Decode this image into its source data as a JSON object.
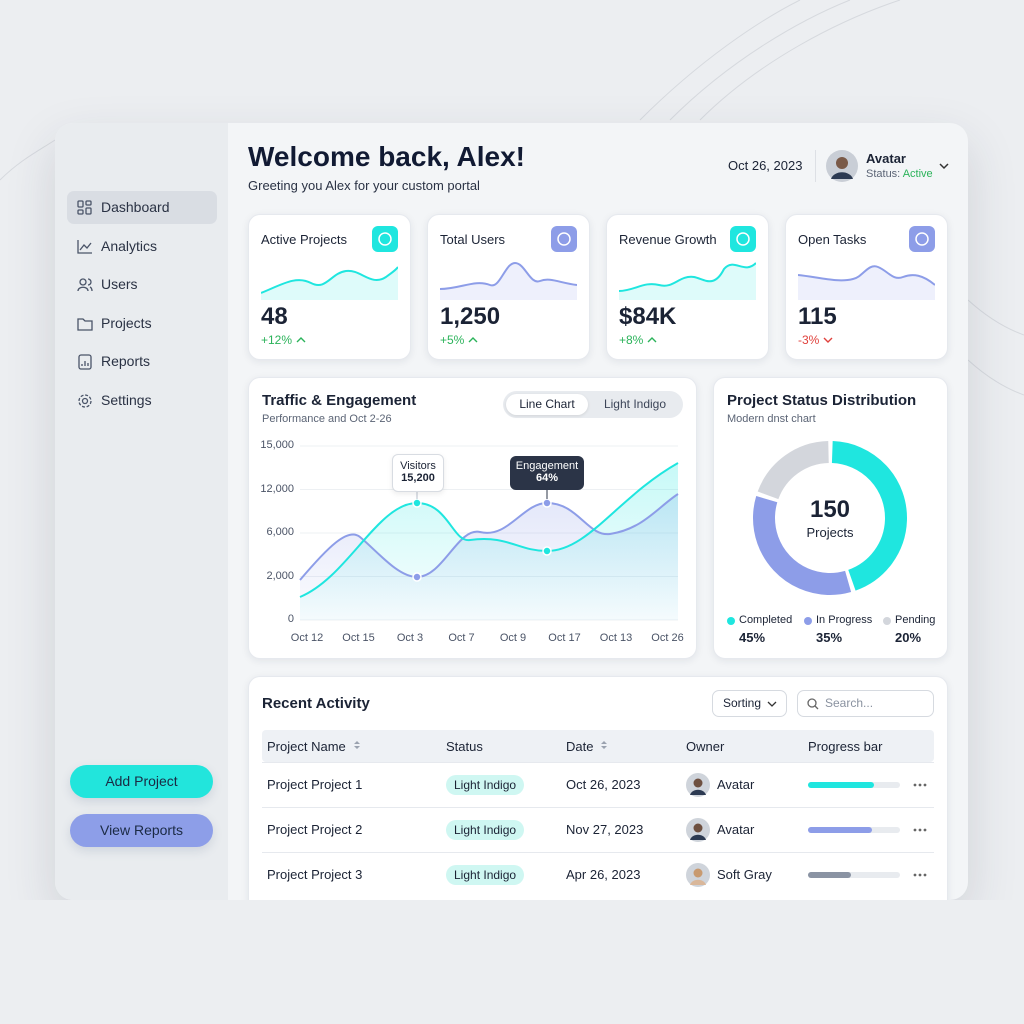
{
  "sidebar": {
    "nav": [
      "Dashboard",
      "Analytics",
      "Users",
      "Projects",
      "Reports",
      "Settings"
    ],
    "buttons": [
      "Add Project",
      "View Reports"
    ]
  },
  "header": {
    "title": "Welcome back, Alex!",
    "subtitle": "Greeting you Alex for your custom portal",
    "date": "Oct 26, 2023",
    "user": {
      "name": "Avatar",
      "status_label": "Status:",
      "status": "Active"
    }
  },
  "stats": [
    {
      "label": "Active Projects",
      "value": "48",
      "change": "+12%"
    },
    {
      "label": "Total Users",
      "value": "1,250",
      "change": "+5%"
    },
    {
      "label": "Revenue Growth",
      "value": "$84K",
      "change": "+8%"
    },
    {
      "label": "Open Tasks",
      "value": "115",
      "change": "-3%"
    }
  ],
  "traffic": {
    "title": "Traffic & Engagement",
    "subtitle": "Performance and Oct 2-26",
    "tabs": [
      "Line Chart",
      "Light Indigo"
    ],
    "yticks": [
      "15,000",
      "12,000",
      "6,000",
      "2,000",
      "0"
    ],
    "xticks": [
      "Oct 12",
      "Oct 15",
      "Oct 3",
      "Oct 7",
      "Oct 9",
      "Oct 17",
      "Oct 13",
      "Oct 26"
    ],
    "annotations": [
      {
        "label": "Visitors",
        "value": "15,200"
      },
      {
        "label": "Engagement",
        "value": "64%"
      }
    ]
  },
  "status_distribution": {
    "title": "Project Status Distribution",
    "subtitle": "Modern dnst chart",
    "center_value": "150",
    "center_label": "Projects",
    "segments": [
      {
        "name": "Completed",
        "value": 45,
        "label": "45%",
        "color": "#1fe6df"
      },
      {
        "name": "In Progress",
        "value": 35,
        "label": "35%",
        "color": "#8d9de8"
      },
      {
        "name": "Pending",
        "value": 20,
        "label": "20%",
        "color": "#d3d6dc"
      }
    ]
  },
  "activity": {
    "title": "Recent Activity",
    "sort": "Sorting",
    "search_placeholder": "Search...",
    "columns": [
      "Project Name",
      "Status",
      "Date",
      "Owner",
      "Progress bar"
    ],
    "rows": [
      {
        "name": "Project Project 1",
        "status": "Light Indigo",
        "date": "Oct 26, 2023",
        "owner": "Avatar",
        "progress": 72,
        "color": "#1fe6df"
      },
      {
        "name": "Project Project 2",
        "status": "Light Indigo",
        "date": "Nov 27, 2023",
        "owner": "Avatar",
        "progress": 70,
        "color": "#8d9de8"
      },
      {
        "name": "Project Project 3",
        "status": "Light Indigo",
        "date": "Apr 26, 2023",
        "owner": "Soft Gray",
        "progress": 47,
        "color": "#8a93a3"
      }
    ]
  }
}
